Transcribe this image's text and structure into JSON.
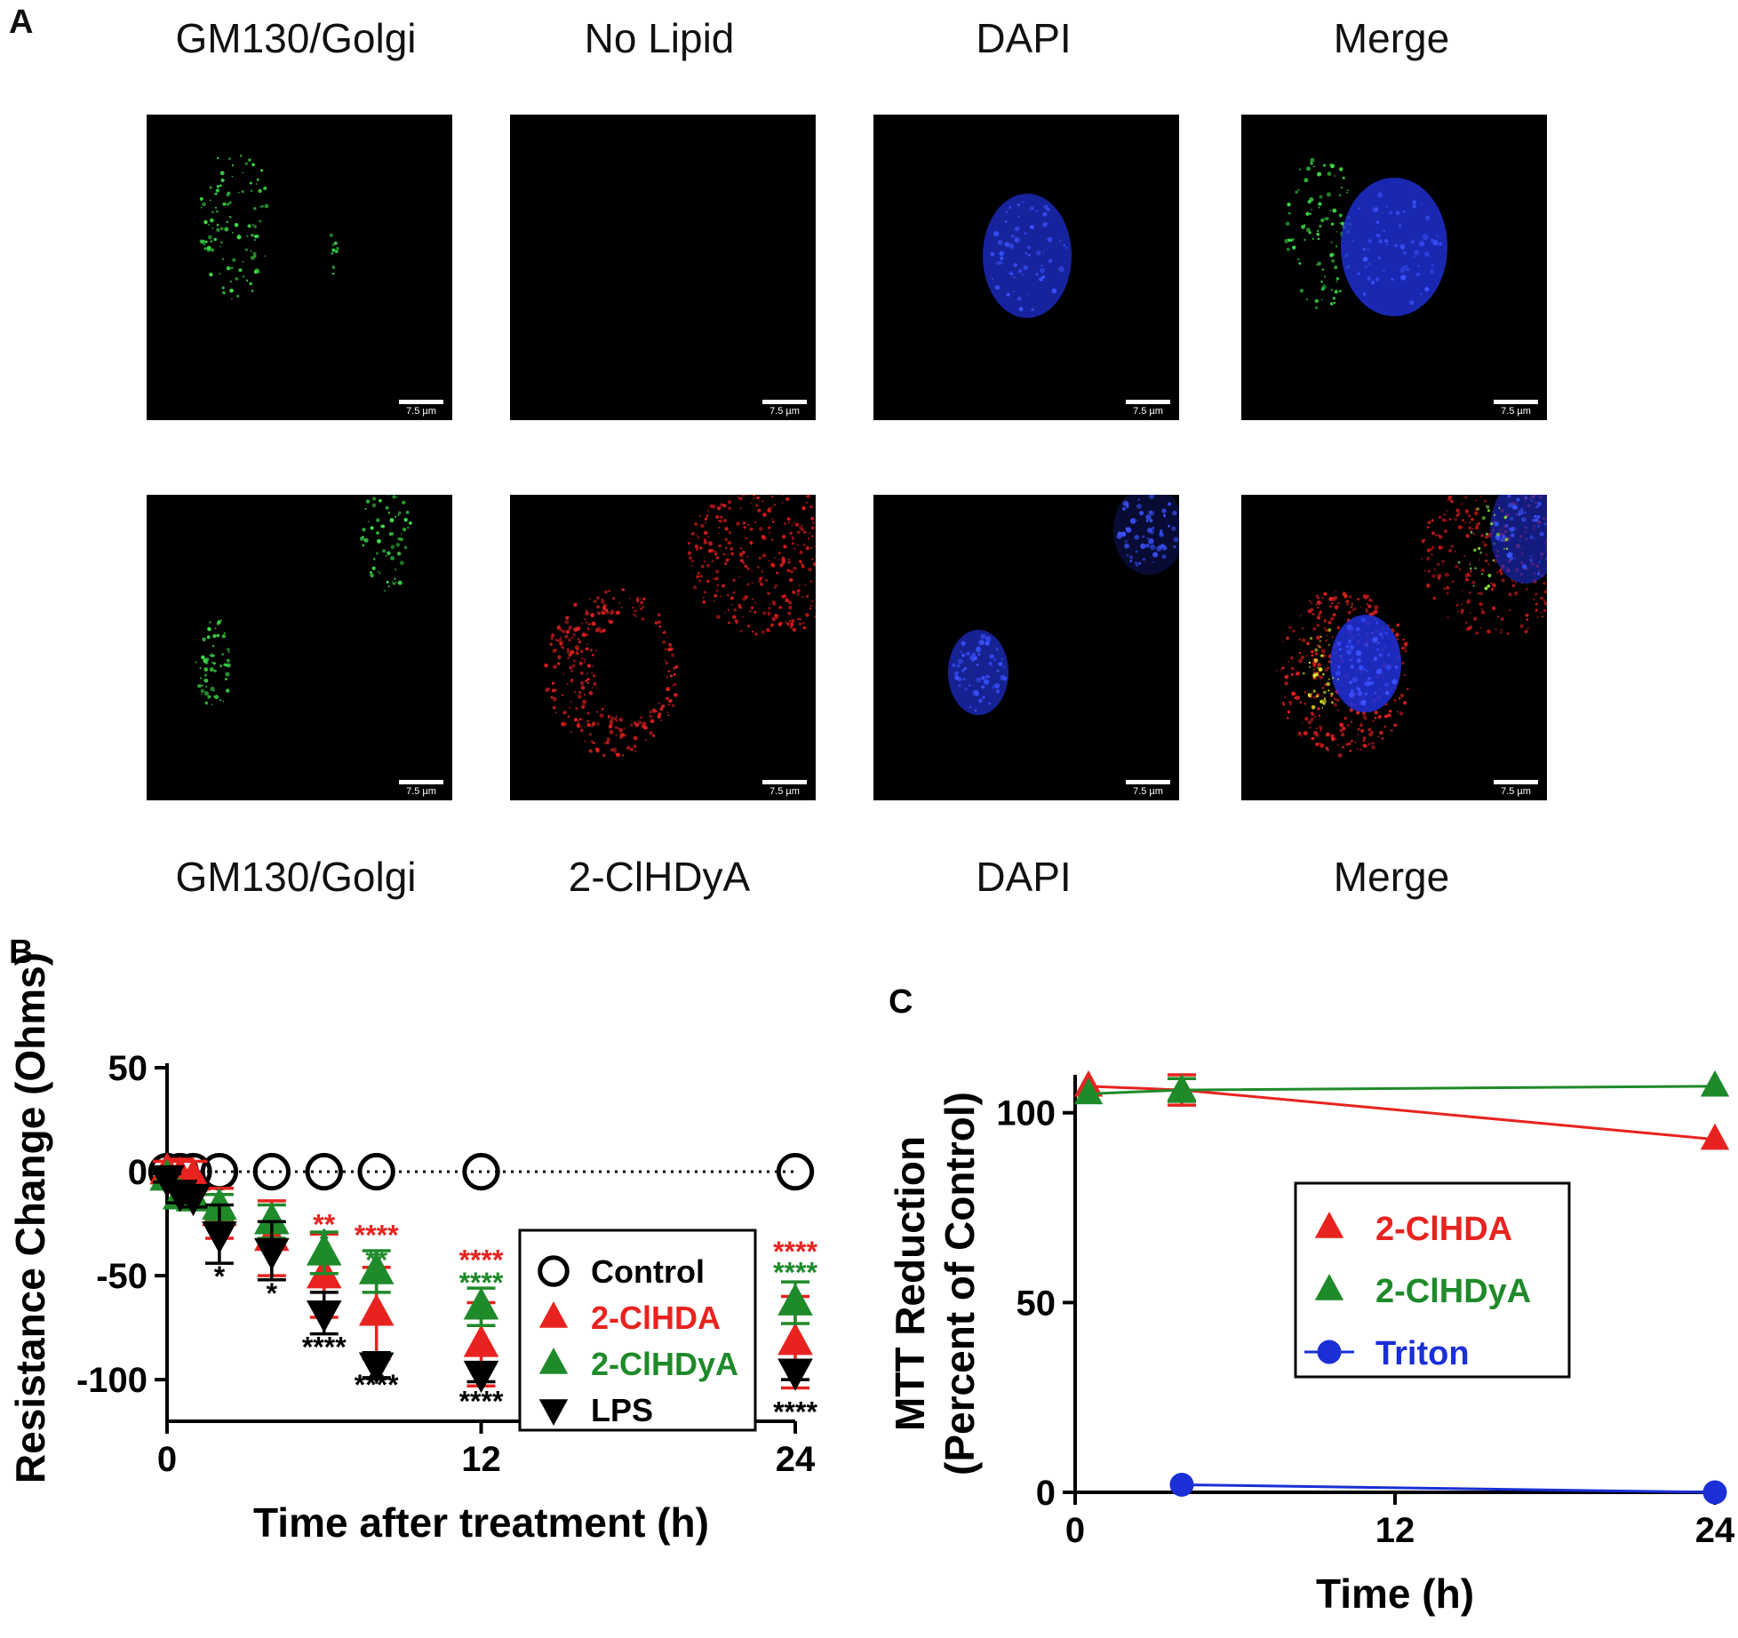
{
  "panel_a": {
    "letter": "A",
    "top_labels": [
      "GM130/Golgi",
      "No Lipid",
      "DAPI",
      "Merge"
    ],
    "bottom_labels": [
      "GM130/Golgi",
      "2-ClHDyA",
      "DAPI",
      "Merge"
    ],
    "scale_bar_label": "7.5 µm"
  },
  "chart_data": [
    {
      "panel": "B",
      "type": "scatter",
      "xlabel": "Time after treatment (h)",
      "ylabel": "Resistance Change (Ohms)",
      "xlim": [
        0,
        24
      ],
      "ylim": [
        -120,
        50
      ],
      "xticks": [
        0,
        12,
        24
      ],
      "yticks": [
        50,
        0,
        -50,
        -100
      ],
      "legend": "center-right",
      "series": [
        {
          "name": "Control",
          "color": "#000000",
          "marker": "open-circle",
          "x": [
            0,
            0.5,
            1,
            2,
            4,
            6,
            8,
            12,
            24
          ],
          "y": [
            0,
            0,
            0,
            0,
            0,
            0,
            0,
            0,
            0
          ],
          "err": [
            0,
            0,
            0,
            0,
            0,
            0,
            0,
            0,
            0
          ]
        },
        {
          "name": "2-ClHDA",
          "color": "#e8231f",
          "marker": "triangle-up",
          "x": [
            0,
            0.5,
            1,
            2,
            4,
            6,
            8,
            12,
            24
          ],
          "y": [
            0,
            -2,
            -3,
            -20,
            -32,
            -50,
            -68,
            -83,
            -82
          ],
          "err": [
            5,
            8,
            8,
            12,
            18,
            20,
            22,
            20,
            22
          ]
        },
        {
          "name": "2-ClHDyA",
          "color": "#1f8a2a",
          "marker": "triangle-up",
          "x": [
            0,
            0.5,
            1,
            2,
            4,
            6,
            8,
            12,
            24
          ],
          "y": [
            -3,
            -12,
            -13,
            -17,
            -24,
            -39,
            -48,
            -65,
            -63
          ],
          "err": [
            3,
            4,
            4,
            6,
            8,
            10,
            10,
            9,
            10
          ]
        },
        {
          "name": "LPS",
          "color": "#000000",
          "marker": "triangle-down",
          "x": [
            0,
            0.5,
            1,
            2,
            4,
            6,
            8,
            12,
            24
          ],
          "y": [
            -3,
            -10,
            -12,
            -30,
            -38,
            -68,
            -93,
            -97,
            -96
          ],
          "err": [
            2,
            5,
            5,
            14,
            14,
            10,
            6,
            4,
            4
          ]
        }
      ],
      "annotations": [
        {
          "x": 2,
          "y": -50,
          "text": "*",
          "color": "#000000"
        },
        {
          "x": 4,
          "y": -58,
          "text": "*",
          "color": "#000000"
        },
        {
          "x": 6,
          "y": -25,
          "text": "**",
          "color": "#e8231f"
        },
        {
          "x": 6,
          "y": -32,
          "text": "*",
          "color": "#1f8a2a"
        },
        {
          "x": 6,
          "y": -84,
          "text": "****",
          "color": "#000000"
        },
        {
          "x": 8,
          "y": -30,
          "text": "****",
          "color": "#e8231f"
        },
        {
          "x": 8,
          "y": -42,
          "text": "**",
          "color": "#1f8a2a"
        },
        {
          "x": 8,
          "y": -102,
          "text": "****",
          "color": "#000000"
        },
        {
          "x": 12,
          "y": -42,
          "text": "****",
          "color": "#e8231f"
        },
        {
          "x": 12,
          "y": -53,
          "text": "****",
          "color": "#1f8a2a"
        },
        {
          "x": 12,
          "y": -110,
          "text": "****",
          "color": "#000000"
        },
        {
          "x": 24,
          "y": -38,
          "text": "****",
          "color": "#e8231f"
        },
        {
          "x": 24,
          "y": -48,
          "text": "****",
          "color": "#1f8a2a"
        },
        {
          "x": 24,
          "y": -115,
          "text": "****",
          "color": "#000000"
        }
      ]
    },
    {
      "panel": "C",
      "type": "line",
      "xlabel": "Time (h)",
      "ylabel": "MTT Reduction",
      "ylabel2": "(Percent of Control)",
      "xlim": [
        0,
        24
      ],
      "ylim": [
        0,
        110
      ],
      "xticks": [
        0,
        12,
        24
      ],
      "yticks": [
        0,
        50,
        100
      ],
      "legend": "center",
      "series": [
        {
          "name": "2-ClHDA",
          "color": "#e8231f",
          "marker": "triangle-up",
          "x": [
            0.5,
            4,
            24
          ],
          "y": [
            107,
            106,
            93
          ],
          "err": [
            0,
            4,
            0
          ]
        },
        {
          "name": "2-ClHDyA",
          "color": "#1f8a2a",
          "marker": "triangle-up",
          "x": [
            0.5,
            4,
            24
          ],
          "y": [
            105,
            106,
            107
          ],
          "err": [
            0,
            3,
            0
          ]
        },
        {
          "name": "Triton",
          "color": "#1a2fd6",
          "marker": "circle",
          "x": [
            4,
            24
          ],
          "y": [
            2,
            0
          ],
          "err": [
            0,
            0
          ]
        }
      ]
    }
  ]
}
